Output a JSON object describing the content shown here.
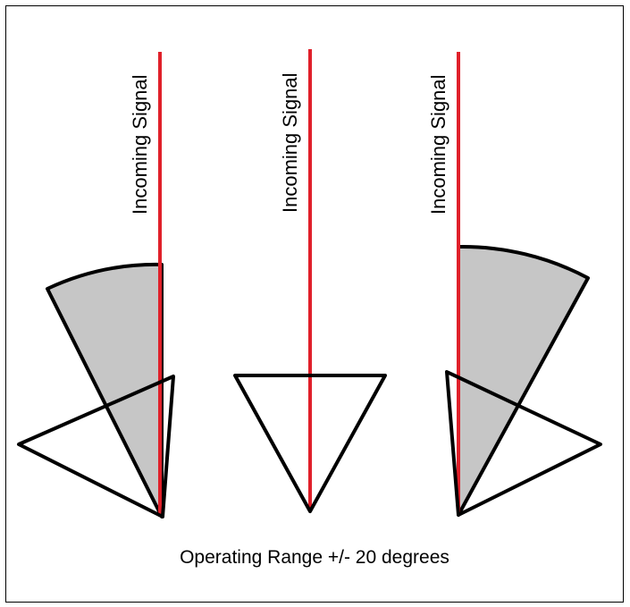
{
  "diagram": {
    "signal_label": "Incoming Signal",
    "caption": "Operating Range +/- 20 degrees",
    "colors": {
      "signal_line": "#e0202a",
      "sector_fill": "#c6c6c6",
      "outline": "#000000",
      "background": "#ffffff"
    }
  }
}
